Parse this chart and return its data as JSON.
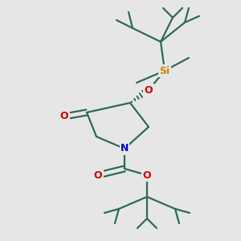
{
  "bg_color": "#e6e6e6",
  "bond_color": "#2d6b50",
  "bond_width": 1.6,
  "atom_colors": {
    "N": "#0000cc",
    "O": "#cc0000",
    "Si": "#cc8800"
  }
}
